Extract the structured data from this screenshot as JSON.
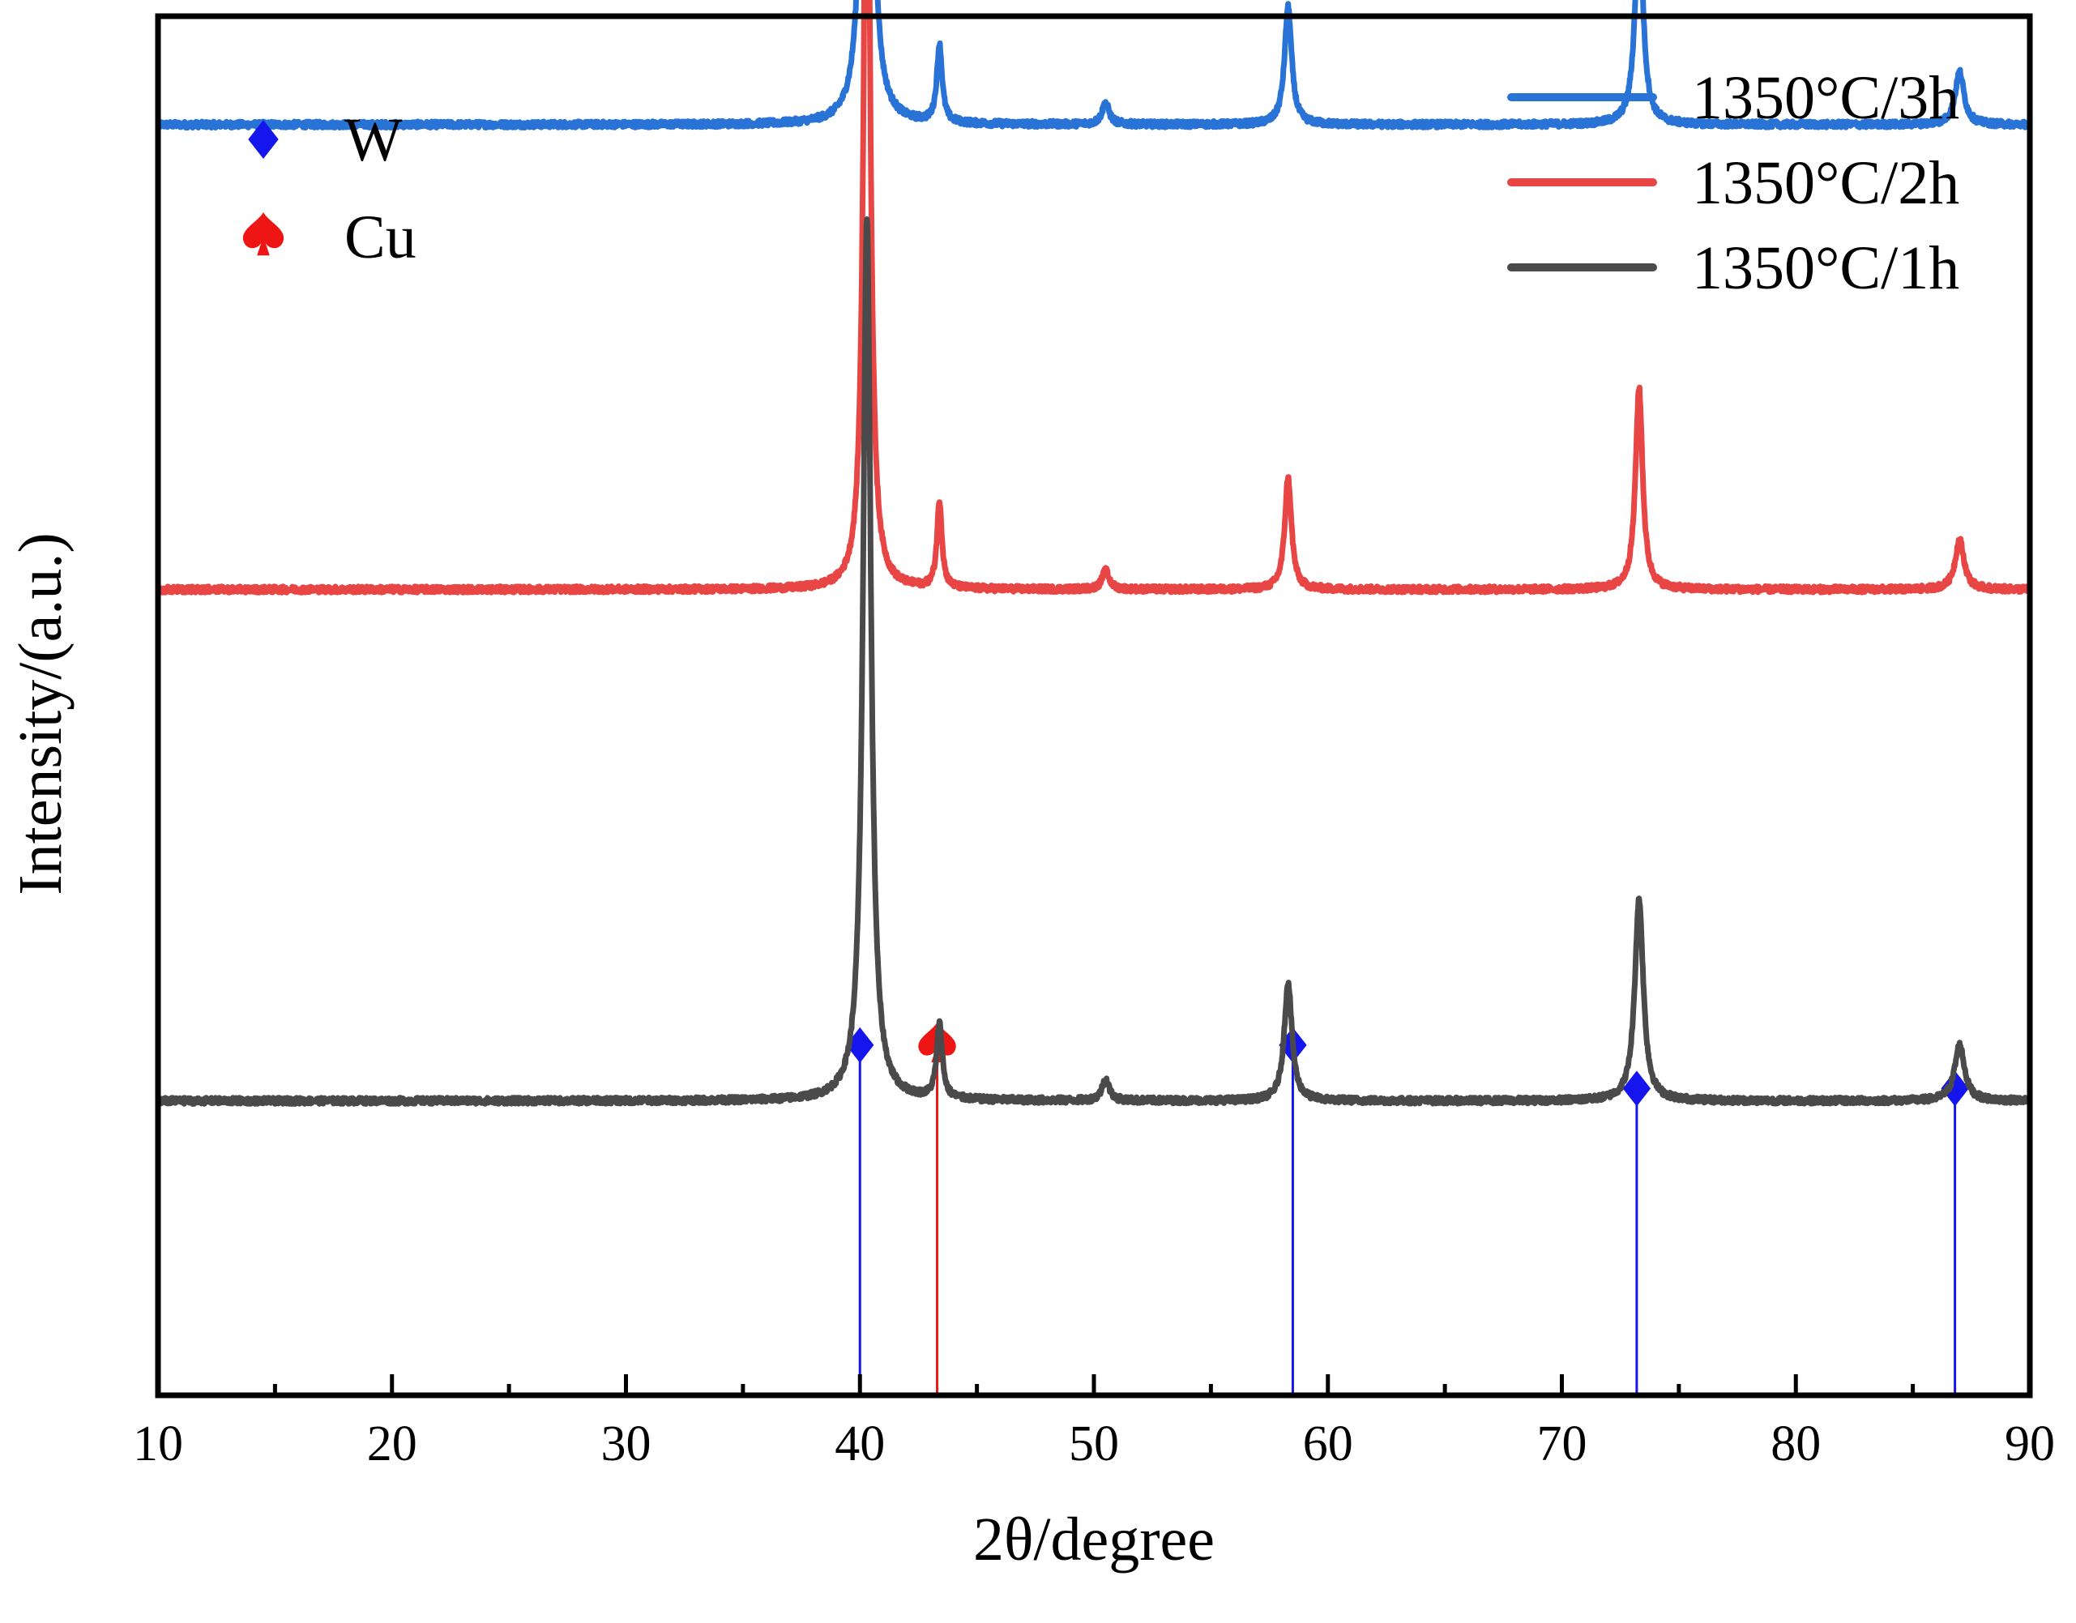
{
  "chart_data": {
    "type": "line",
    "xlabel": "2θ/degree",
    "ylabel": "Intensity/(a.u.)",
    "xlim": [
      10,
      90
    ],
    "x_ticks": [
      "10",
      "20",
      "30",
      "40",
      "50",
      "60",
      "70",
      "80",
      "90"
    ],
    "y_ticks_labeled": false,
    "legend": {
      "placement": "top-right",
      "entries": [
        {
          "label": "1350°C/3h",
          "color": "#2a73d6"
        },
        {
          "label": "1350°C/2h",
          "color": "#e84545"
        },
        {
          "label": "1350°C/1h",
          "color": "#4a4a4a"
        }
      ]
    },
    "phase_legend": {
      "placement": "top-left",
      "entries": [
        {
          "label": "W",
          "symbol": "diamond",
          "color": "#1515ee"
        },
        {
          "label": "Cu",
          "symbol": "spade",
          "color": "#ee1515"
        }
      ]
    },
    "series": [
      {
        "name": "1350°C/3h",
        "color": "#2a73d6",
        "baseline": 3.15,
        "peaks": [
          {
            "x": 40.3,
            "height": 3.0,
            "width": 0.2
          },
          {
            "x": 43.4,
            "height": 0.25,
            "width": 0.15
          },
          {
            "x": 50.5,
            "height": 0.07,
            "width": 0.2
          },
          {
            "x": 58.3,
            "height": 0.38,
            "width": 0.2
          },
          {
            "x": 73.3,
            "height": 0.68,
            "width": 0.22
          },
          {
            "x": 87.0,
            "height": 0.17,
            "width": 0.25
          }
        ]
      },
      {
        "name": "1350°C/2h",
        "color": "#e84545",
        "baseline": 1.65,
        "peaks": [
          {
            "x": 40.3,
            "height": 2.85,
            "width": 0.18
          },
          {
            "x": 43.4,
            "height": 0.28,
            "width": 0.14
          },
          {
            "x": 50.5,
            "height": 0.06,
            "width": 0.2
          },
          {
            "x": 58.3,
            "height": 0.36,
            "width": 0.19
          },
          {
            "x": 73.3,
            "height": 0.65,
            "width": 0.2
          },
          {
            "x": 87.0,
            "height": 0.16,
            "width": 0.25
          }
        ]
      },
      {
        "name": "1350°C/1h",
        "color": "#4a4a4a",
        "baseline": 0.0,
        "peaks": [
          {
            "x": 40.3,
            "height": 2.85,
            "width": 0.22
          },
          {
            "x": 43.4,
            "height": 0.24,
            "width": 0.16
          },
          {
            "x": 50.5,
            "height": 0.07,
            "width": 0.2
          },
          {
            "x": 58.3,
            "height": 0.38,
            "width": 0.22
          },
          {
            "x": 73.3,
            "height": 0.65,
            "width": 0.24
          },
          {
            "x": 87.0,
            "height": 0.18,
            "width": 0.28
          }
        ]
      }
    ],
    "reference_lines": [
      {
        "phase": "W",
        "x": 40.0,
        "color": "#1515ee",
        "marker_top": 0.18
      },
      {
        "phase": "Cu",
        "x": 43.3,
        "color": "#ee1515",
        "marker_top": 0.18
      },
      {
        "phase": "W",
        "x": 58.5,
        "color": "#1515ee",
        "marker_top": 0.18
      },
      {
        "phase": "W",
        "x": 73.2,
        "color": "#1515ee",
        "marker_top": 0.04
      },
      {
        "phase": "W",
        "x": 86.8,
        "color": "#1515ee",
        "marker_top": 0.04
      }
    ],
    "ylim": [
      -0.95,
      3.5
    ]
  }
}
